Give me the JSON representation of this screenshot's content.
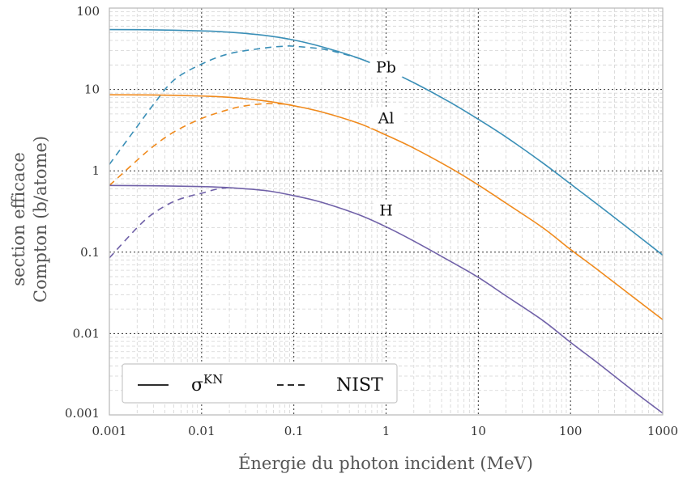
{
  "chart_data": {
    "type": "line",
    "xlabel": "Énergie du photon incident (MeV)",
    "ylabel": [
      "section efficace",
      "Compton (b/atome)"
    ],
    "xscale": "log",
    "yscale": "log",
    "xlim": [
      0.001,
      1000
    ],
    "ylim": [
      0.001,
      100
    ],
    "xticks": [
      "0.001",
      "0.01",
      "0.1",
      "1",
      "10",
      "100",
      "1000"
    ],
    "yticks": [
      "0.001",
      "0.01",
      "0.1",
      "1",
      "10",
      "100"
    ],
    "grid": "major dotted dark, minor dashed light",
    "legend": {
      "position": "bottom-left",
      "entries": [
        {
          "label": "σ",
          "superscript": "KN",
          "style": "solid"
        },
        {
          "label": "NIST",
          "style": "dashed"
        }
      ]
    },
    "series": [
      {
        "name": "Pb",
        "color": "#3a8fb7",
        "label_at": [
          1,
          19
        ],
        "kn": {
          "x": [
            0.001,
            0.003,
            0.01,
            0.02,
            0.05,
            0.1,
            0.2,
            0.5,
            1,
            2,
            5,
            10,
            20,
            50,
            100,
            200,
            500,
            1000
          ],
          "y": [
            54.5,
            54,
            52.5,
            50.5,
            46,
            40.5,
            33.5,
            24.3,
            17.6,
            12.1,
            6.9,
            4.3,
            2.6,
            1.25,
            0.69,
            0.38,
            0.17,
            0.092
          ]
        },
        "nist": {
          "x": [
            0.001,
            0.002,
            0.003,
            0.005,
            0.01,
            0.02,
            0.05,
            0.08,
            0.1,
            0.2,
            0.3,
            0.5
          ],
          "y": [
            1.2,
            3.5,
            6.5,
            13,
            20.5,
            27.5,
            32.5,
            34,
            34,
            31.5,
            28.5,
            24.3
          ]
        }
      },
      {
        "name": "Al",
        "color": "#f08a1c",
        "label_at": [
          1,
          4.5
        ],
        "kn": {
          "x": [
            0.001,
            0.003,
            0.01,
            0.02,
            0.05,
            0.1,
            0.2,
            0.5,
            1,
            2,
            5,
            10,
            20,
            50,
            100,
            200,
            500,
            1000
          ],
          "y": [
            8.6,
            8.55,
            8.3,
            8.0,
            7.2,
            6.3,
            5.3,
            3.85,
            2.75,
            1.9,
            1.08,
            0.67,
            0.4,
            0.2,
            0.108,
            0.06,
            0.027,
            0.0148
          ]
        },
        "nist": {
          "x": [
            0.001,
            0.002,
            0.003,
            0.005,
            0.01,
            0.02,
            0.03,
            0.05,
            0.08,
            0.1
          ],
          "y": [
            0.66,
            1.35,
            2.0,
            3.0,
            4.4,
            5.7,
            6.3,
            6.7,
            6.6,
            6.3
          ]
        }
      },
      {
        "name": "H",
        "color": "#7061a8",
        "label_at": [
          1,
          0.33
        ],
        "kn": {
          "x": [
            0.001,
            0.003,
            0.01,
            0.02,
            0.05,
            0.1,
            0.2,
            0.5,
            1,
            2,
            5,
            10,
            20,
            50,
            100,
            200,
            500,
            1000
          ],
          "y": [
            0.66,
            0.655,
            0.64,
            0.62,
            0.57,
            0.495,
            0.41,
            0.29,
            0.205,
            0.137,
            0.077,
            0.049,
            0.029,
            0.0145,
            0.0078,
            0.0043,
            0.0019,
            0.00105
          ]
        },
        "nist": {
          "x": [
            0.001,
            0.002,
            0.003,
            0.005,
            0.008,
            0.01,
            0.015,
            0.02
          ],
          "y": [
            0.085,
            0.2,
            0.3,
            0.42,
            0.5,
            0.53,
            0.6,
            0.62
          ]
        }
      }
    ]
  }
}
